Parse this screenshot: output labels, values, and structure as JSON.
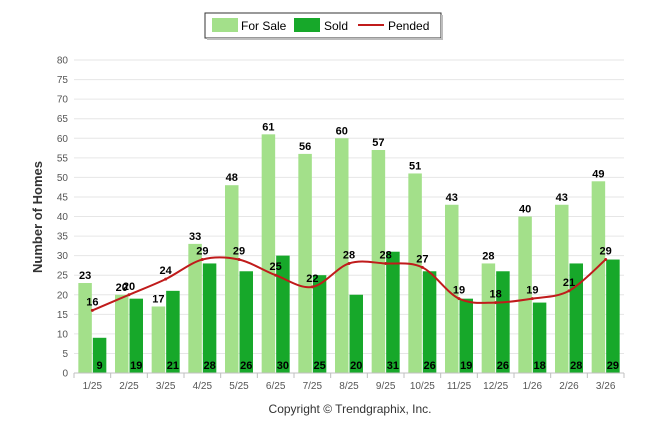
{
  "chart_data": {
    "type": "bar",
    "title": "",
    "xlabel": "",
    "ylabel": "Number of Homes",
    "ylim": [
      0,
      80
    ],
    "y_ticks": [
      0,
      5,
      10,
      15,
      20,
      25,
      30,
      35,
      40,
      45,
      50,
      55,
      60,
      65,
      70,
      75,
      80
    ],
    "grid": true,
    "legend_position": "top-center",
    "categories": [
      "1/25",
      "2/25",
      "3/25",
      "4/25",
      "5/25",
      "6/25",
      "7/25",
      "8/25",
      "9/25",
      "10/25",
      "11/25",
      "12/25",
      "1/26",
      "2/26",
      "3/26"
    ],
    "series": [
      {
        "name": "For Sale",
        "kind": "bar",
        "color": "#a3e08a",
        "label_color": "#000000",
        "values": [
          23,
          20,
          17,
          33,
          48,
          61,
          56,
          60,
          57,
          51,
          43,
          28,
          40,
          43,
          49
        ]
      },
      {
        "name": "Sold",
        "kind": "bar",
        "color": "#17a82a",
        "label_color": "#000000",
        "values": [
          9,
          19,
          21,
          28,
          26,
          30,
          25,
          20,
          31,
          26,
          19,
          26,
          18,
          28,
          29
        ]
      },
      {
        "name": "Pended",
        "kind": "line",
        "color": "#c01b1b",
        "label_color": "#000000",
        "values": [
          16,
          20,
          24,
          29,
          29,
          25,
          22,
          28,
          28,
          27,
          19,
          18,
          19,
          21,
          29
        ]
      }
    ]
  },
  "footer": {
    "copyright": "Copyright © Trendgraphix, Inc."
  },
  "colors": {
    "grid": "#e6e6e6",
    "axis": "#c0c0c0",
    "legend_border": "#333333"
  }
}
